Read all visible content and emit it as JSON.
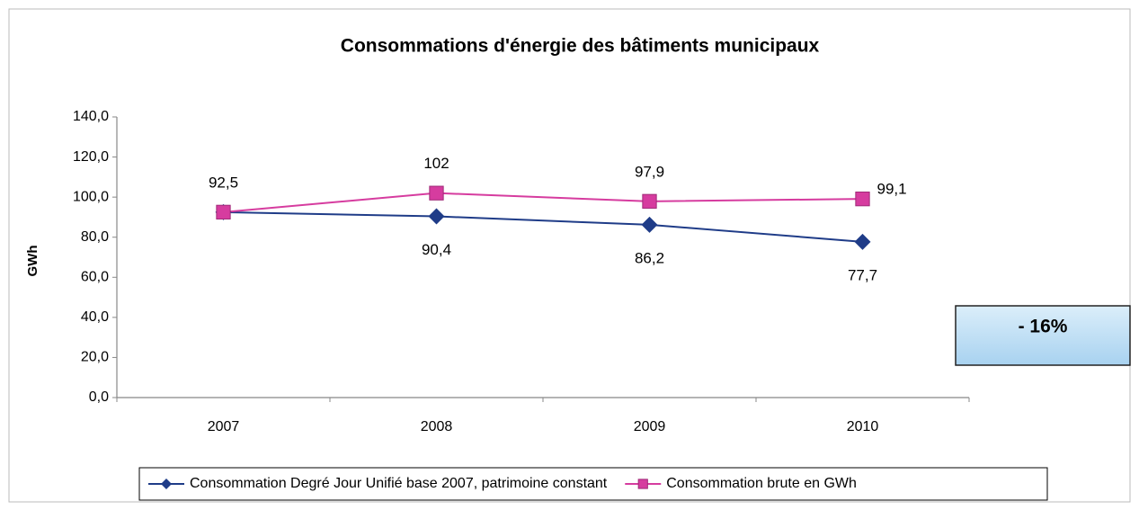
{
  "chart_data": {
    "type": "line",
    "title": "Consommations d'énergie des bâtiments municipaux",
    "y_label": "GWh",
    "annotation": "- 16%",
    "categories": [
      "2007",
      "2008",
      "2009",
      "2010"
    ],
    "series": [
      {
        "name": "Consommation Degré Jour Unifié base 2007, patrimoine constant",
        "color": "#1f3c88",
        "marker": "diamond",
        "values": [
          92.5,
          90.4,
          86.2,
          77.7
        ],
        "value_labels": [
          null,
          "90,4",
          "86,2",
          "77,7"
        ]
      },
      {
        "name": "Consommation brute en GWh",
        "color": "#d63c9f",
        "marker": "square",
        "values": [
          92.5,
          102,
          97.9,
          99.1
        ],
        "value_labels": [
          "92,5",
          "102",
          "97,9",
          "99,1"
        ]
      }
    ],
    "ylim": [
      0,
      140
    ],
    "yticks": [
      {
        "value": 0,
        "label": "0,0"
      },
      {
        "value": 20,
        "label": "20,0"
      },
      {
        "value": 40,
        "label": "40,0"
      },
      {
        "value": 60,
        "label": "60,0"
      },
      {
        "value": 80,
        "label": "80,0"
      },
      {
        "value": 100,
        "label": "100,0"
      },
      {
        "value": 120,
        "label": "120,0"
      },
      {
        "value": 140,
        "label": "140,0"
      }
    ],
    "grid": false,
    "legend": "bottom"
  }
}
